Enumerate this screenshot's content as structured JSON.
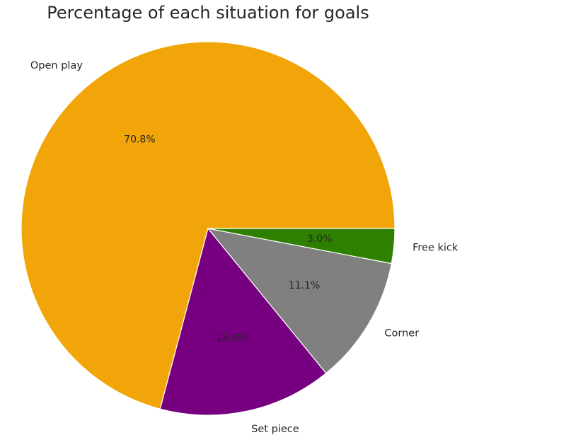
{
  "chart_data": {
    "type": "pie",
    "title": "Percentage of each situation for goals",
    "slices": [
      {
        "label": "Open play",
        "value": 70.8,
        "pct_label": "70.8%",
        "color": "#f2a508"
      },
      {
        "label": "Set piece",
        "value": 15.0,
        "pct_label": "15.0%",
        "color": "#770080"
      },
      {
        "label": "Corner",
        "value": 11.1,
        "pct_label": "11.1%",
        "color": "#808080"
      },
      {
        "label": "Free kick",
        "value": 3.0,
        "pct_label": "3.0%",
        "color": "#2e8000"
      }
    ],
    "start_angle_deg": 0,
    "direction": "counterclockwise"
  }
}
